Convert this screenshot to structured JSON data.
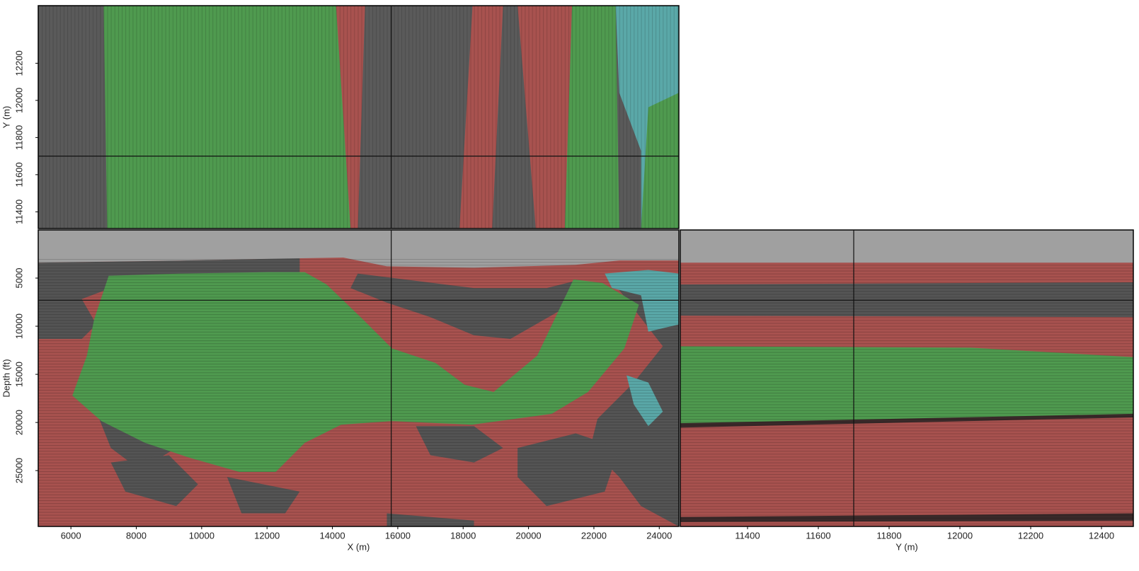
{
  "chart_data": [
    {
      "type": "image",
      "ylabel": "Y (m)",
      "xlim": [
        5000,
        24600
      ],
      "ylim": [
        11310,
        12510
      ],
      "yticks": [
        11400,
        11600,
        11800,
        12000,
        12200
      ],
      "crosshair": {
        "x": 15800,
        "y": 11700
      }
    },
    {
      "type": "image",
      "xlabel": "X (m)",
      "ylabel": "Depth (ft)",
      "xlim": [
        5000,
        24600
      ],
      "ylim": [
        30800,
        0
      ],
      "xticks": [
        6000,
        8000,
        10000,
        12000,
        14000,
        16000,
        18000,
        20000,
        22000,
        24000
      ],
      "yticks": [
        5000,
        10000,
        15000,
        20000,
        25000
      ],
      "crosshair": {
        "x": 15800,
        "y": 7300
      }
    },
    {
      "type": "image",
      "xlabel": "Y (m)",
      "xlim": [
        11210,
        12490
      ],
      "ylim": [
        30800,
        0
      ],
      "xticks": [
        11400,
        11600,
        11800,
        12000,
        12200,
        12400
      ],
      "crosshair": {
        "x": 11700,
        "y": 7300
      }
    }
  ]
}
